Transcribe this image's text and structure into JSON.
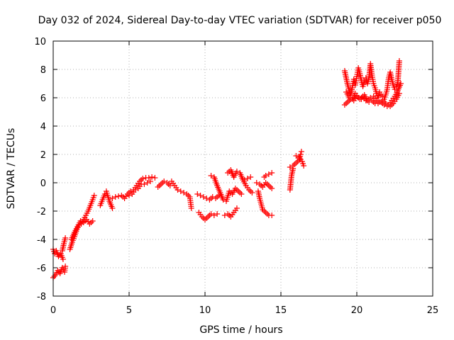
{
  "chart_data": {
    "type": "scatter",
    "title": "Day 032 of 2024, Sidereal Day-to-day VTEC variation (SDTVAR) for receiver p050",
    "xlabel": "GPS time / hours",
    "ylabel": "SDTVAR / TECUs",
    "xlim": [
      0,
      25
    ],
    "ylim": [
      -8,
      10
    ],
    "xticks": [
      "0",
      "5",
      "10",
      "15",
      "20",
      "25"
    ],
    "yticks": [
      "-8",
      "-6",
      "-4",
      "-2",
      "0",
      "2",
      "4",
      "6",
      "8",
      "10"
    ],
    "grid": true,
    "marker": "+",
    "color": "#ff0000",
    "series": [
      {
        "name": "SDTVAR",
        "segments": [
          [
            [
              0.0,
              -4.7
            ],
            [
              0.1,
              -5.0
            ],
            [
              0.2,
              -4.8
            ],
            [
              0.35,
              -5.2
            ],
            [
              0.5,
              -5.0
            ],
            [
              0.65,
              -5.4
            ]
          ],
          [
            [
              0.0,
              -6.7
            ],
            [
              0.15,
              -6.5
            ],
            [
              0.3,
              -6.2
            ],
            [
              0.45,
              -6.4
            ],
            [
              0.6,
              -6.0
            ],
            [
              0.75,
              -6.3
            ],
            [
              0.8,
              -5.9
            ]
          ],
          [
            [
              0.6,
              -4.8
            ],
            [
              0.7,
              -4.3
            ],
            [
              0.8,
              -3.9
            ]
          ],
          [
            [
              1.1,
              -4.7
            ],
            [
              1.25,
              -4.2
            ],
            [
              1.4,
              -3.8
            ],
            [
              1.55,
              -3.3
            ],
            [
              1.7,
              -3.0
            ],
            [
              1.85,
              -2.9
            ],
            [
              2.0,
              -2.6
            ],
            [
              2.15,
              -2.3
            ],
            [
              2.3,
              -2.0
            ],
            [
              2.45,
              -1.6
            ],
            [
              2.6,
              -1.2
            ],
            [
              2.7,
              -0.9
            ]
          ],
          [
            [
              1.2,
              -4.0
            ],
            [
              1.4,
              -3.5
            ],
            [
              1.6,
              -3.1
            ],
            [
              1.8,
              -2.7
            ],
            [
              2.0,
              -2.8
            ],
            [
              2.2,
              -2.6
            ],
            [
              2.4,
              -2.9
            ],
            [
              2.6,
              -2.7
            ]
          ],
          [
            [
              3.1,
              -1.6
            ],
            [
              3.25,
              -1.2
            ],
            [
              3.4,
              -0.8
            ],
            [
              3.5,
              -0.6
            ],
            [
              3.7,
              -1.3
            ],
            [
              3.9,
              -1.8
            ]
          ],
          [
            [
              3.9,
              -1.1
            ],
            [
              4.1,
              -1.0
            ],
            [
              4.3,
              -0.95
            ],
            [
              4.5,
              -0.9
            ],
            [
              4.7,
              -1.1
            ],
            [
              4.9,
              -0.8
            ],
            [
              5.1,
              -0.6
            ],
            [
              5.3,
              -0.5
            ],
            [
              5.5,
              -0.2
            ],
            [
              5.7,
              0.1
            ],
            [
              5.9,
              0.3
            ],
            [
              6.1,
              0.35
            ],
            [
              6.3,
              0.35
            ],
            [
              6.5,
              0.4
            ],
            [
              6.7,
              0.35
            ]
          ],
          [
            [
              5.0,
              -0.9
            ],
            [
              5.2,
              -0.8
            ],
            [
              5.4,
              -0.5
            ],
            [
              5.6,
              -0.4
            ],
            [
              5.8,
              -0.1
            ],
            [
              6.0,
              -0.1
            ],
            [
              6.2,
              0.0
            ],
            [
              6.4,
              0.1
            ]
          ],
          [
            [
              6.9,
              -0.3
            ],
            [
              7.1,
              -0.1
            ],
            [
              7.3,
              0.1
            ],
            [
              7.5,
              0.0
            ],
            [
              7.7,
              -0.2
            ]
          ],
          [
            [
              7.8,
              0.1
            ],
            [
              8.0,
              -0.2
            ],
            [
              8.2,
              -0.5
            ],
            [
              8.4,
              -0.6
            ],
            [
              8.6,
              -0.7
            ],
            [
              8.8,
              -0.8
            ],
            [
              9.0,
              -1.0
            ],
            [
              9.1,
              -1.8
            ]
          ],
          [
            [
              9.5,
              -0.8
            ],
            [
              9.7,
              -0.9
            ],
            [
              9.9,
              -1.0
            ],
            [
              10.1,
              -1.1
            ],
            [
              10.3,
              -1.2
            ],
            [
              10.5,
              -1.0
            ],
            [
              10.7,
              -1.1
            ],
            [
              10.9,
              -0.9
            ]
          ],
          [
            [
              9.6,
              -2.1
            ],
            [
              9.8,
              -2.4
            ],
            [
              10.0,
              -2.6
            ],
            [
              10.2,
              -2.4
            ],
            [
              10.4,
              -2.2
            ],
            [
              10.6,
              -2.3
            ],
            [
              10.8,
              -2.2
            ]
          ],
          [
            [
              10.4,
              0.5
            ],
            [
              10.6,
              0.4
            ],
            [
              10.8,
              -0.2
            ],
            [
              11.0,
              -0.7
            ],
            [
              11.2,
              -1.2
            ],
            [
              11.4,
              -1.3
            ],
            [
              11.6,
              -0.6
            ],
            [
              11.8,
              -0.8
            ],
            [
              12.0,
              -0.4
            ],
            [
              12.2,
              -0.6
            ],
            [
              12.4,
              -0.8
            ]
          ],
          [
            [
              11.5,
              0.7
            ],
            [
              11.7,
              0.9
            ],
            [
              11.9,
              0.4
            ],
            [
              12.1,
              0.8
            ],
            [
              12.3,
              0.7
            ],
            [
              12.5,
              0.2
            ],
            [
              12.7,
              -0.2
            ],
            [
              12.9,
              -0.5
            ],
            [
              13.1,
              -0.7
            ]
          ],
          [
            [
              11.3,
              -2.3
            ],
            [
              11.5,
              -2.2
            ],
            [
              11.7,
              -2.4
            ],
            [
              11.9,
              -2.1
            ],
            [
              12.1,
              -1.8
            ]
          ],
          [
            [
              12.6,
              0.2
            ],
            [
              12.8,
              0.3
            ],
            [
              13.0,
              0.4
            ]
          ],
          [
            [
              13.5,
              -0.6
            ],
            [
              13.6,
              -1.1
            ],
            [
              13.7,
              -1.5
            ],
            [
              13.8,
              -1.9
            ],
            [
              14.0,
              -2.1
            ],
            [
              14.2,
              -2.3
            ],
            [
              14.4,
              -2.3
            ]
          ],
          [
            [
              13.4,
              0.0
            ],
            [
              13.6,
              -0.1
            ],
            [
              13.8,
              -0.3
            ],
            [
              14.0,
              0.0
            ],
            [
              14.2,
              -0.2
            ],
            [
              14.4,
              -0.4
            ]
          ],
          [
            [
              13.9,
              0.4
            ],
            [
              14.0,
              0.5
            ],
            [
              14.2,
              0.6
            ],
            [
              14.4,
              0.7
            ]
          ],
          [
            [
              15.6,
              -0.5
            ],
            [
              15.65,
              0.0
            ],
            [
              15.7,
              0.5
            ],
            [
              15.8,
              1.0
            ]
          ],
          [
            [
              15.6,
              1.1
            ],
            [
              15.8,
              1.2
            ],
            [
              16.0,
              1.4
            ],
            [
              16.2,
              1.6
            ],
            [
              16.3,
              2.0
            ],
            [
              16.35,
              2.2
            ]
          ],
          [
            [
              16.0,
              1.9
            ],
            [
              16.2,
              1.8
            ],
            [
              16.4,
              1.5
            ],
            [
              16.5,
              1.2
            ]
          ],
          [
            [
              19.2,
              7.9
            ],
            [
              19.3,
              7.4
            ],
            [
              19.4,
              6.9
            ],
            [
              19.5,
              6.5
            ],
            [
              19.6,
              6.2
            ],
            [
              19.7,
              6.7
            ],
            [
              19.8,
              7.3
            ],
            [
              19.9,
              6.9
            ],
            [
              20.0,
              7.5
            ],
            [
              20.1,
              8.1
            ],
            [
              20.2,
              7.7
            ],
            [
              20.3,
              7.2
            ],
            [
              20.4,
              6.8
            ],
            [
              20.5,
              7.2
            ],
            [
              20.6,
              7.4
            ],
            [
              20.7,
              7.0
            ],
            [
              20.8,
              7.4
            ],
            [
              20.9,
              8.4
            ],
            [
              21.0,
              7.6
            ],
            [
              21.1,
              7.0
            ],
            [
              21.2,
              6.7
            ],
            [
              21.3,
              6.3
            ],
            [
              21.4,
              6.0
            ],
            [
              21.5,
              6.4
            ],
            [
              21.6,
              6.2
            ],
            [
              21.7,
              6.1
            ],
            [
              21.8,
              5.9
            ],
            [
              21.9,
              6.2
            ],
            [
              22.0,
              6.6
            ],
            [
              22.1,
              7.4
            ],
            [
              22.2,
              7.8
            ],
            [
              22.3,
              7.3
            ],
            [
              22.4,
              6.9
            ],
            [
              22.5,
              6.6
            ],
            [
              22.6,
              6.8
            ],
            [
              22.7,
              7.1
            ],
            [
              22.8,
              8.6
            ]
          ],
          [
            [
              19.2,
              5.5
            ],
            [
              19.4,
              5.7
            ],
            [
              19.6,
              5.9
            ],
            [
              19.8,
              5.8
            ],
            [
              20.0,
              6.1
            ],
            [
              20.2,
              5.9
            ],
            [
              20.4,
              6.1
            ],
            [
              20.6,
              5.8
            ],
            [
              20.8,
              5.7
            ],
            [
              21.0,
              5.8
            ],
            [
              21.2,
              5.6
            ],
            [
              21.4,
              5.6
            ],
            [
              21.6,
              5.7
            ],
            [
              21.8,
              5.5
            ],
            [
              22.0,
              5.4
            ],
            [
              22.2,
              5.4
            ],
            [
              22.4,
              5.6
            ],
            [
              22.6,
              5.9
            ],
            [
              22.8,
              6.3
            ]
          ],
          [
            [
              19.3,
              6.4
            ],
            [
              19.5,
              6.0
            ],
            [
              19.7,
              5.9
            ],
            [
              19.9,
              6.3
            ],
            [
              20.1,
              6.0
            ],
            [
              20.3,
              5.9
            ],
            [
              20.5,
              6.2
            ],
            [
              20.7,
              5.8
            ],
            [
              20.9,
              6.0
            ],
            [
              21.1,
              6.1
            ],
            [
              21.3,
              5.8
            ],
            [
              21.5,
              5.7
            ],
            [
              21.7,
              5.8
            ],
            [
              21.9,
              5.6
            ],
            [
              22.1,
              5.5
            ],
            [
              22.3,
              5.8
            ],
            [
              22.5,
              6.1
            ],
            [
              22.7,
              6.5
            ],
            [
              22.9,
              7.0
            ]
          ]
        ]
      }
    ]
  }
}
